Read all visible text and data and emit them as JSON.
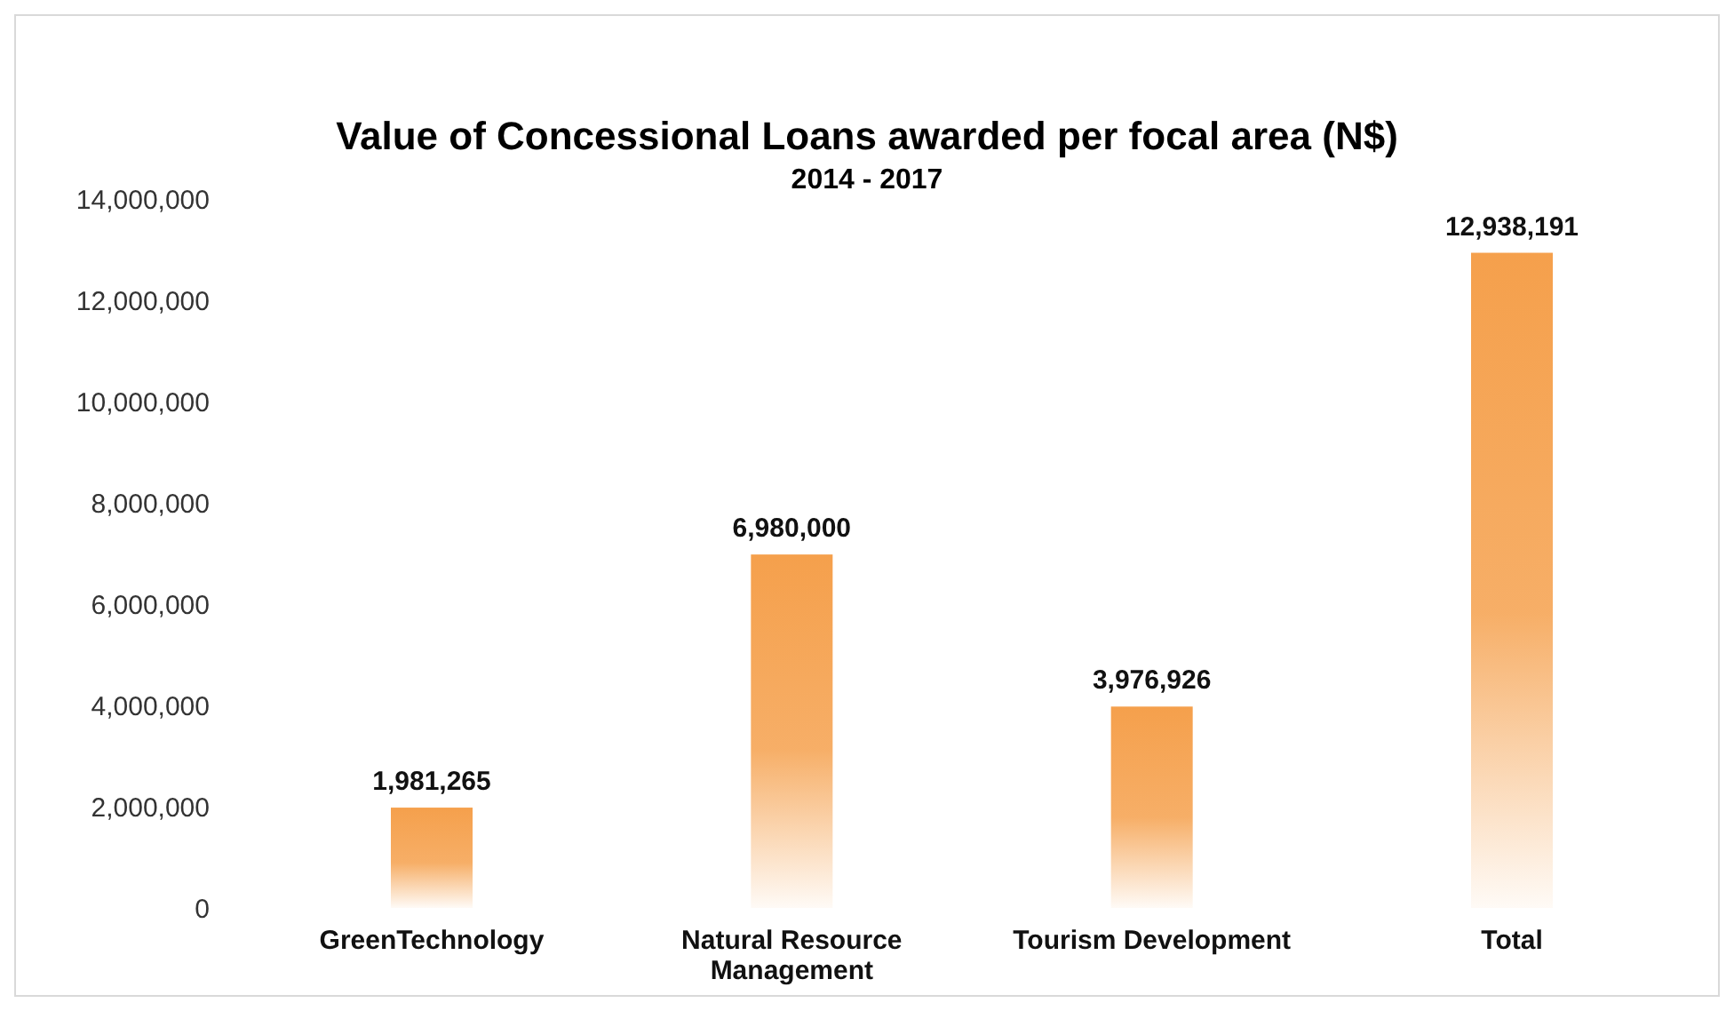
{
  "chart_data": {
    "type": "bar",
    "title": "Value of Concessional Loans awarded per focal area (N$)",
    "subtitle": "2014 - 2017",
    "categories": [
      "GreenTechnology",
      "Natural Resource Management",
      "Tourism Development",
      "Total"
    ],
    "values": [
      1981265,
      6980000,
      3976926,
      12938191
    ],
    "color": "#f5a04c",
    "value_labels": [
      "1,981,265",
      "6,980,000",
      "3,976,926",
      "12,938,191"
    ],
    "ylim": [
      0,
      14000000
    ],
    "yticks": [
      {
        "value": 0,
        "label": "0"
      },
      {
        "value": 2000000,
        "label": "2,000,000"
      },
      {
        "value": 4000000,
        "label": "4,000,000"
      },
      {
        "value": 6000000,
        "label": "6,000,000"
      },
      {
        "value": 8000000,
        "label": "8,000,000"
      },
      {
        "value": 10000000,
        "label": "10,000,000"
      },
      {
        "value": 12000000,
        "label": "12,000,000"
      },
      {
        "value": 14000000,
        "label": "14,000,000"
      }
    ],
    "grid": false
  }
}
